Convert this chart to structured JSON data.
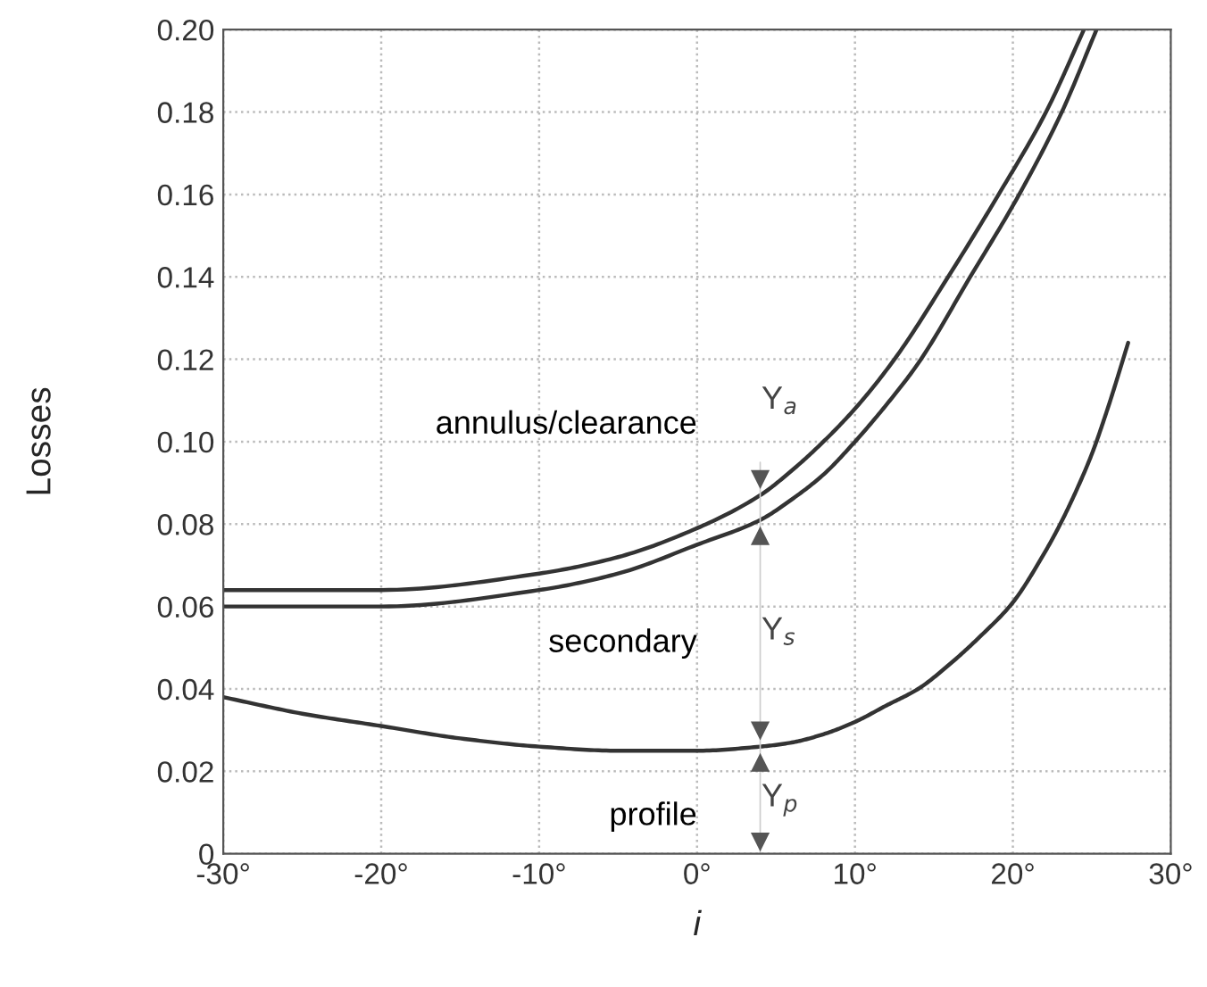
{
  "chart_data": {
    "type": "line",
    "xlabel": "i",
    "ylabel": "Losses",
    "xlim": [
      -30,
      30
    ],
    "ylim": [
      0,
      0.2
    ],
    "xticks": [
      {
        "value": -30,
        "label": "-30°"
      },
      {
        "value": -20,
        "label": "-20°"
      },
      {
        "value": -10,
        "label": "-10°"
      },
      {
        "value": 0,
        "label": "0°"
      },
      {
        "value": 10,
        "label": "10°"
      },
      {
        "value": 20,
        "label": "20°"
      },
      {
        "value": 30,
        "label": "30°"
      }
    ],
    "yticks": [
      0,
      {
        "value": 0.02,
        "label": "0.02"
      },
      {
        "value": 0.04,
        "label": "0.04"
      },
      {
        "value": 0.06,
        "label": "0.06"
      },
      {
        "value": 0.08,
        "label": "0.08"
      },
      {
        "value": 0.1,
        "label": "0.10"
      },
      {
        "value": 0.12,
        "label": "0.12"
      },
      {
        "value": 0.14,
        "label": "0.14"
      },
      {
        "value": 0.16,
        "label": "0.16"
      },
      {
        "value": 0.18,
        "label": "0.18"
      },
      {
        "value": 0.2,
        "label": "0.20"
      }
    ],
    "grid": true,
    "marker": "none",
    "line_style": "solid",
    "series": [
      {
        "color": "#333333",
        "x": [
          -30,
          -25,
          -20,
          -15,
          -10,
          -5,
          0,
          4,
          6,
          8,
          10,
          12,
          14,
          16,
          18,
          20,
          22,
          23,
          24,
          25,
          26,
          27.3
        ],
        "values": [
          0.038,
          0.034,
          0.031,
          0.028,
          0.026,
          0.025,
          0.025,
          0.026,
          0.027,
          0.029,
          0.032,
          0.036,
          0.04,
          0.046,
          0.053,
          0.061,
          0.073,
          0.08,
          0.088,
          0.097,
          0.108,
          0.124
        ]
      },
      {
        "color": "#333333",
        "x": [
          -30,
          -20,
          -10,
          -5,
          0,
          4,
          6,
          8,
          10,
          12,
          14,
          17.3,
          20.4,
          23.1,
          25.3
        ],
        "values": [
          0.06,
          0.06,
          0.064,
          0.068,
          0.075,
          0.081,
          0.086,
          0.092,
          0.1,
          0.109,
          0.119,
          0.14,
          0.16,
          0.18,
          0.2
        ]
      },
      {
        "color": "#333333",
        "x": [
          -30,
          -20,
          -10,
          -5,
          0,
          4,
          6,
          8,
          10,
          12.5,
          15.9,
          19.1,
          22.1,
          24.5
        ],
        "values": [
          0.064,
          0.064,
          0.068,
          0.072,
          0.079,
          0.087,
          0.093,
          0.1,
          0.108,
          0.12,
          0.14,
          0.16,
          0.18,
          0.2
        ]
      }
    ],
    "annotations": [
      "annulus/clearance",
      "secondary",
      "profile",
      "Y$_{a}$",
      "Y$_{s}$",
      "Y$_{p}$"
    ]
  }
}
